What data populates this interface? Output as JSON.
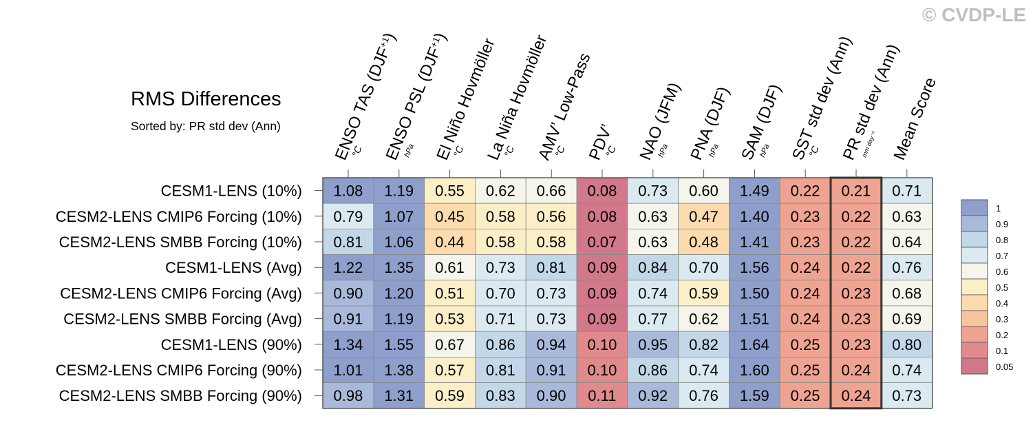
{
  "watermark": "© CVDP-LE",
  "title": "RMS Differences",
  "subtitle": "Sorted by: PR std dev (Ann)",
  "chart_data": {
    "type": "heatmap",
    "title": "RMS Differences",
    "subtitle": "Sorted by: PR std dev (Ann)",
    "columns": [
      {
        "name": "ENSO TAS (DJF+1)",
        "label": "ENSO TAS (DJF",
        "sup": "+1",
        "tail": ")",
        "unit": "°C"
      },
      {
        "name": "ENSO PSL (DJF+1)",
        "label": "ENSO PSL (DJF",
        "sup": "+1",
        "tail": ")",
        "unit": "hPa"
      },
      {
        "name": "El Niño Hovmöller",
        "label": "El Niño Hovmöller",
        "sup": "",
        "tail": "",
        "unit": "°C"
      },
      {
        "name": "La Niña Hovmöller",
        "label": "La Niña Hovmöller",
        "sup": "",
        "tail": "",
        "unit": "°C"
      },
      {
        "name": "AMV' Low-Pass",
        "label": "AMV’ Low-Pass",
        "sup": "",
        "tail": "",
        "unit": "°C"
      },
      {
        "name": "PDV'",
        "label": "PDV’",
        "sup": "",
        "tail": "",
        "unit": "°C"
      },
      {
        "name": "NAO (JFM)",
        "label": "NAO (JFM)",
        "sup": "",
        "tail": "",
        "unit": "hPa"
      },
      {
        "name": "PNA (DJF)",
        "label": "PNA (DJF)",
        "sup": "",
        "tail": "",
        "unit": "hPa"
      },
      {
        "name": "SAM (DJF)",
        "label": "SAM (DJF)",
        "sup": "",
        "tail": "",
        "unit": "hPa"
      },
      {
        "name": "SST std dev (Ann)",
        "label": "SST std dev (Ann)",
        "sup": "",
        "tail": "",
        "unit": "°C"
      },
      {
        "name": "PR std dev (Ann)",
        "label": "PR std dev (Ann)",
        "sup": "",
        "tail": "",
        "unit": "mm day-1"
      },
      {
        "name": "Mean Score",
        "label": "Mean Score",
        "sup": "",
        "tail": "",
        "unit": ""
      }
    ],
    "rows": [
      "CESM1-LENS (10%)",
      "CESM2-LENS CMIP6 Forcing (10%)",
      "CESM2-LENS SMBB Forcing (10%)",
      "CESM1-LENS (Avg)",
      "CESM2-LENS CMIP6 Forcing (Avg)",
      "CESM2-LENS SMBB Forcing (Avg)",
      "CESM1-LENS (90%)",
      "CESM2-LENS CMIP6 Forcing (90%)",
      "CESM2-LENS SMBB Forcing (90%)"
    ],
    "values": [
      [
        "1.08",
        "1.19",
        "0.55",
        "0.62",
        "0.66",
        "0.08",
        "0.73",
        "0.60",
        "1.49",
        "0.22",
        "0.21",
        "0.71"
      ],
      [
        "0.79",
        "1.07",
        "0.45",
        "0.58",
        "0.56",
        "0.08",
        "0.63",
        "0.47",
        "1.40",
        "0.23",
        "0.22",
        "0.63"
      ],
      [
        "0.81",
        "1.06",
        "0.44",
        "0.58",
        "0.58",
        "0.07",
        "0.63",
        "0.48",
        "1.41",
        "0.23",
        "0.22",
        "0.64"
      ],
      [
        "1.22",
        "1.35",
        "0.61",
        "0.73",
        "0.81",
        "0.09",
        "0.84",
        "0.70",
        "1.56",
        "0.24",
        "0.22",
        "0.76"
      ],
      [
        "0.90",
        "1.20",
        "0.51",
        "0.70",
        "0.73",
        "0.09",
        "0.74",
        "0.59",
        "1.50",
        "0.24",
        "0.23",
        "0.68"
      ],
      [
        "0.91",
        "1.19",
        "0.53",
        "0.71",
        "0.73",
        "0.09",
        "0.77",
        "0.62",
        "1.51",
        "0.24",
        "0.23",
        "0.69"
      ],
      [
        "1.34",
        "1.55",
        "0.67",
        "0.86",
        "0.94",
        "0.10",
        "0.95",
        "0.82",
        "1.64",
        "0.25",
        "0.23",
        "0.80"
      ],
      [
        "1.01",
        "1.38",
        "0.57",
        "0.81",
        "0.91",
        "0.10",
        "0.86",
        "0.74",
        "1.60",
        "0.25",
        "0.24",
        "0.74"
      ],
      [
        "0.98",
        "1.31",
        "0.59",
        "0.83",
        "0.90",
        "0.11",
        "0.92",
        "0.76",
        "1.59",
        "0.25",
        "0.24",
        "0.73"
      ]
    ],
    "highlight_column": 10,
    "colorbar": {
      "levels": [
        "1",
        "0.9",
        "0.8",
        "0.7",
        "0.6",
        "0.5",
        "0.4",
        "0.3",
        "0.2",
        "0.1",
        "0.05"
      ],
      "colors": [
        "#8f9fcc",
        "#a9b9da",
        "#c2d7e8",
        "#dbeaf1",
        "#f5f5ec",
        "#fbefc8",
        "#fcdcae",
        "#f7c59c",
        "#efa391",
        "#e08a8b",
        "#d1788a"
      ]
    }
  }
}
